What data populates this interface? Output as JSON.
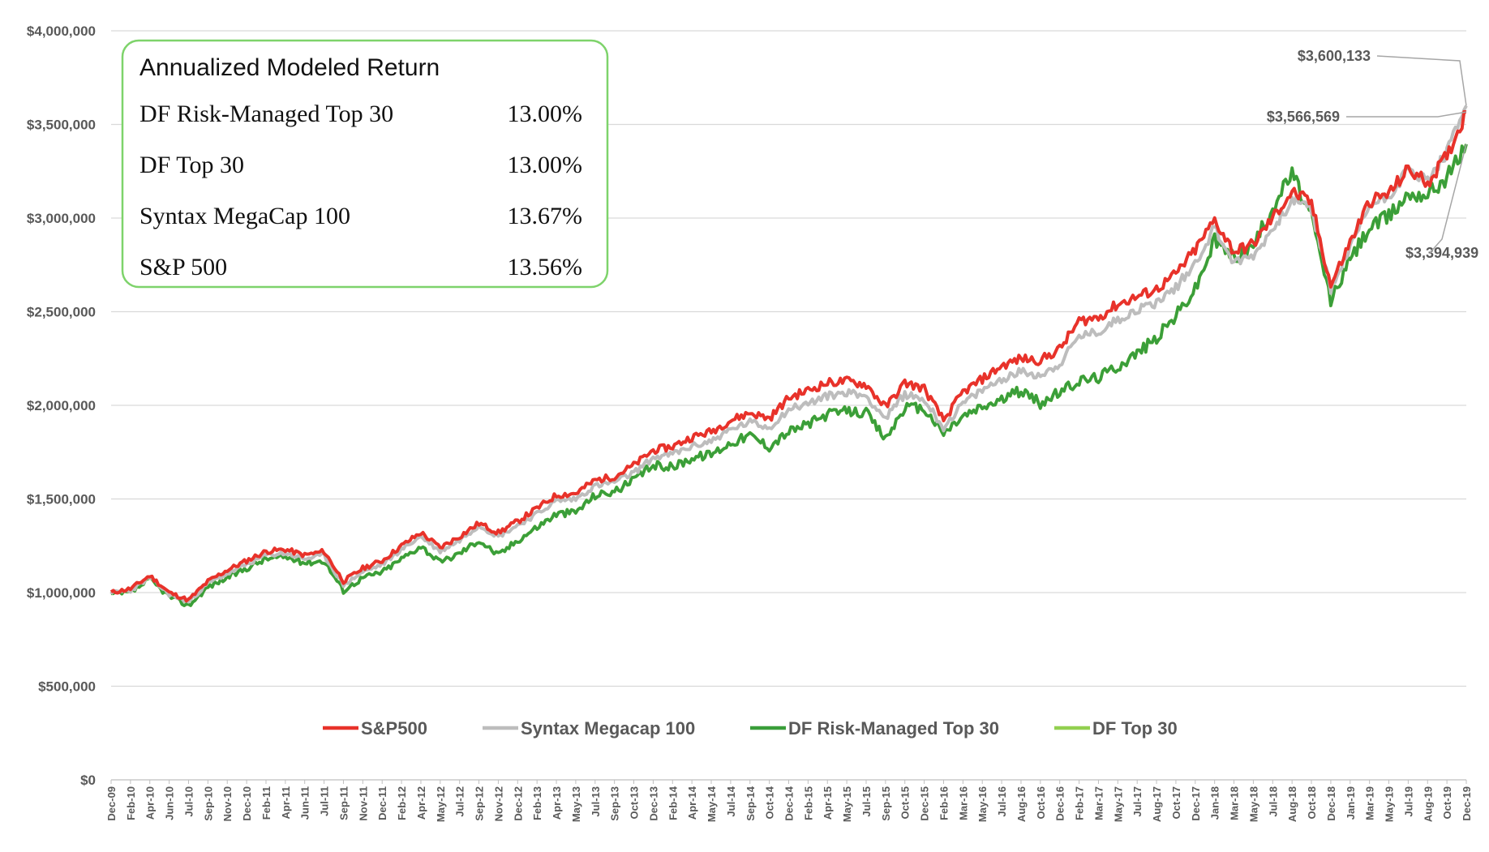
{
  "chart_data": {
    "type": "line",
    "title": "",
    "xlabel": "",
    "ylabel": "",
    "ylim": [
      0,
      4000000
    ],
    "y_ticks": [
      {
        "value": 4000000,
        "label": "$4,000,000"
      },
      {
        "value": 3500000,
        "label": "$3,500,000"
      },
      {
        "value": 3000000,
        "label": "$3,000,000"
      },
      {
        "value": 2500000,
        "label": "$2,500,000"
      },
      {
        "value": 2000000,
        "label": "$2,000,000"
      },
      {
        "value": 1500000,
        "label": "$1,500,000"
      },
      {
        "value": 1000000,
        "label": "$1,000,000"
      },
      {
        "value": 500000,
        "label": "$500,000"
      },
      {
        "value": 0,
        "label": "$0"
      }
    ],
    "x": [
      "Dec-09",
      "Feb-10",
      "Apr-10",
      "Jun-10",
      "Jul-10",
      "Sep-10",
      "Nov-10",
      "Dec-10",
      "Feb-11",
      "Apr-11",
      "Jun-11",
      "Jul-11",
      "Sep-11",
      "Nov-11",
      "Dec-11",
      "Feb-12",
      "Apr-12",
      "May-12",
      "Jul-12",
      "Sep-12",
      "Nov-12",
      "Dec-12",
      "Feb-13",
      "Apr-13",
      "May-13",
      "Jul-13",
      "Sep-13",
      "Oct-13",
      "Dec-13",
      "Feb-14",
      "Apr-14",
      "May-14",
      "Jul-14",
      "Sep-14",
      "Oct-14",
      "Dec-14",
      "Feb-15",
      "Apr-15",
      "May-15",
      "Jul-15",
      "Sep-15",
      "Oct-15",
      "Dec-15",
      "Feb-16",
      "Mar-16",
      "May-16",
      "Jul-16",
      "Aug-16",
      "Oct-16",
      "Dec-16",
      "Feb-17",
      "Mar-17",
      "May-17",
      "Jul-17",
      "Aug-17",
      "Oct-17",
      "Dec-17",
      "Jan-18",
      "Mar-18",
      "May-18",
      "Jul-18",
      "Aug-18",
      "Oct-18",
      "Dec-18",
      "Jan-19",
      "Mar-19",
      "May-19",
      "Jul-19",
      "Aug-19",
      "Oct-19",
      "Dec-19"
    ],
    "series": [
      {
        "name": "S&P500",
        "color": "#e8322a",
        "values": [
          1000000,
          1020000,
          1090000,
          1000000,
          960000,
          1060000,
          1120000,
          1170000,
          1220000,
          1230000,
          1200000,
          1220000,
          1060000,
          1130000,
          1170000,
          1250000,
          1320000,
          1240000,
          1300000,
          1370000,
          1320000,
          1380000,
          1450000,
          1520000,
          1530000,
          1600000,
          1620000,
          1680000,
          1760000,
          1780000,
          1830000,
          1860000,
          1920000,
          1960000,
          1930000,
          2040000,
          2080000,
          2120000,
          2130000,
          2110000,
          1990000,
          2120000,
          2090000,
          1920000,
          2070000,
          2140000,
          2210000,
          2250000,
          2240000,
          2300000,
          2450000,
          2470000,
          2540000,
          2580000,
          2620000,
          2700000,
          2830000,
          2990000,
          2820000,
          2860000,
          3000000,
          3140000,
          3080000,
          2640000,
          2870000,
          3090000,
          3130000,
          3260000,
          3190000,
          3330000,
          3566569
        ]
      },
      {
        "name": "Syntax Megacap 100",
        "color": "#bdbdbd",
        "values": [
          1000000,
          1010000,
          1080000,
          990000,
          950000,
          1050000,
          1100000,
          1150000,
          1200000,
          1210000,
          1180000,
          1200000,
          1040000,
          1110000,
          1150000,
          1230000,
          1300000,
          1220000,
          1280000,
          1360000,
          1300000,
          1360000,
          1420000,
          1490000,
          1500000,
          1570000,
          1590000,
          1640000,
          1720000,
          1740000,
          1780000,
          1810000,
          1870000,
          1910000,
          1880000,
          1980000,
          2010000,
          2050000,
          2070000,
          2050000,
          1930000,
          2060000,
          2030000,
          1880000,
          2010000,
          2080000,
          2140000,
          2180000,
          2160000,
          2220000,
          2370000,
          2390000,
          2460000,
          2510000,
          2550000,
          2630000,
          2760000,
          2950000,
          2760000,
          2800000,
          2940000,
          3100000,
          3050000,
          2620000,
          2840000,
          3070000,
          3120000,
          3260000,
          3200000,
          3350000,
          3600133
        ]
      },
      {
        "name": "DF Risk-Managed Top 30",
        "color": "#3a9e3a",
        "values": [
          990000,
          1000000,
          1070000,
          980000,
          930000,
          1030000,
          1080000,
          1130000,
          1180000,
          1190000,
          1160000,
          1170000,
          1010000,
          1080000,
          1110000,
          1180000,
          1250000,
          1160000,
          1210000,
          1280000,
          1200000,
          1280000,
          1350000,
          1420000,
          1430000,
          1520000,
          1540000,
          1600000,
          1680000,
          1670000,
          1720000,
          1740000,
          1800000,
          1840000,
          1780000,
          1860000,
          1900000,
          1950000,
          1970000,
          1960000,
          1820000,
          1990000,
          1980000,
          1850000,
          1940000,
          1990000,
          2030000,
          2080000,
          2010000,
          2070000,
          2130000,
          2150000,
          2210000,
          2280000,
          2360000,
          2480000,
          2620000,
          2880000,
          2790000,
          2850000,
          3060000,
          3240000,
          3000000,
          2560000,
          2780000,
          2950000,
          3010000,
          3130000,
          3130000,
          3220000,
          3394939
        ]
      },
      {
        "name": "DF Top 30",
        "color": "#92d050",
        "values": [
          990000,
          1000000,
          1070000,
          980000,
          930000,
          1030000,
          1080000,
          1130000,
          1180000,
          1190000,
          1160000,
          1170000,
          1010000,
          1080000,
          1110000,
          1180000,
          1250000,
          1160000,
          1210000,
          1280000,
          1200000,
          1280000,
          1350000,
          1420000,
          1430000,
          1520000,
          1540000,
          1600000,
          1680000,
          1670000,
          1720000,
          1740000,
          1800000,
          1840000,
          1780000,
          1860000,
          1900000,
          1950000,
          1970000,
          1960000,
          1820000,
          1990000,
          1980000,
          1850000,
          1940000,
          1990000,
          2030000,
          2080000,
          2010000,
          2070000,
          2130000,
          2150000,
          2210000,
          2280000,
          2360000,
          2480000,
          2620000,
          2880000,
          2790000,
          2850000,
          3060000,
          3240000,
          3000000,
          2560000,
          2780000,
          2950000,
          3010000,
          3130000,
          3130000,
          3220000,
          3394939
        ]
      }
    ],
    "end_labels": [
      "$3,600,133",
      "$3,566,569",
      "$3,394,939"
    ],
    "legend_position": "bottom",
    "grid": true
  },
  "summary_box": {
    "title": "Annualized Modeled Return",
    "rows": [
      {
        "name": "DF Risk-Managed Top 30",
        "value": "13.00%"
      },
      {
        "name": "DF Top 30",
        "value": "13.00%"
      },
      {
        "name": "Syntax MegaCap 100",
        "value": "13.67%"
      },
      {
        "name": "S&P 500",
        "value": "13.56%"
      }
    ],
    "border_color": "#7ed36b"
  }
}
